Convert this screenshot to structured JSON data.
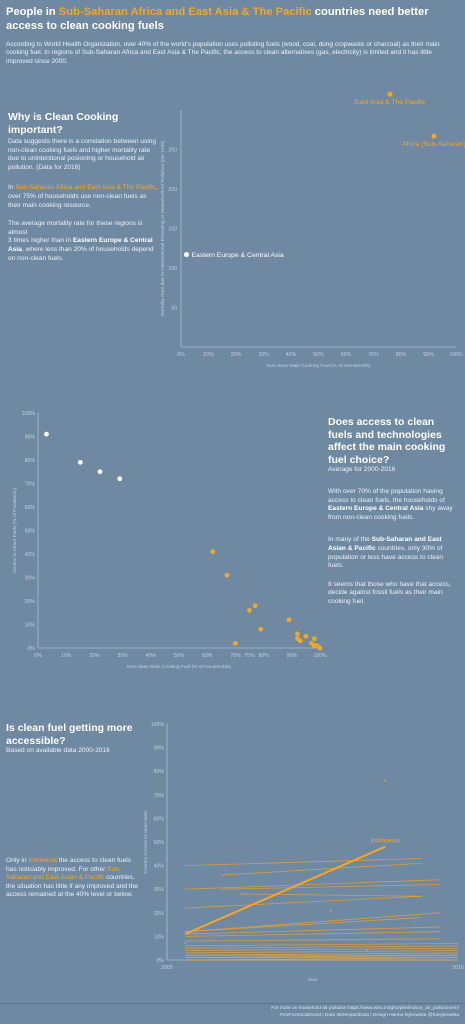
{
  "header": {
    "title_a": "People in ",
    "title_hl": "Sub-Saharan Africa and East Asia & The Pacific",
    "title_b": " countries need better access to clean cooking fuels",
    "intro": "According to World Health Organization, over 40% of the world's population uses polluting fuels (wood, coal, dung cropwaste or charcoal) as their main cooking fuel. In regions of Sub-Saharan Africa and East Asia & The Pacific, the access to clean alternatives (gas, electricity) is limited and it has little improved since 2000."
  },
  "section1": {
    "heading": "Why is Clean Cooking important?",
    "p1": "Data suggests there is a correlation between using non-clean cooking fuels and higher mortality rate due to unintentional posioning or household air pollution. (Data for 2016)",
    "p2_a": "In ",
    "p2_hl": "Sub-Saharan Africa and East Asia & The Pacific",
    "p2_b": ", over 75% of households use non-clean fuels as their main cooking resource.",
    "p3_a": "The average mortality rate for these regions is almost",
    "p3_b": "3 times higher than in ",
    "p3_bold": "Eastern Europe & Central Asia",
    "p3_c": ", where less than 20% of households depend on non-clean fuels."
  },
  "section2": {
    "heading": "Does access to clean fuels and technologies affect the main cooking fuel choice?",
    "subheading": "Average for 2000-2016",
    "p1_a": "With over 70% of the population having access to clean fuels, the households of ",
    "p1_bold": "Eastern Europe & Central Asia",
    "p1_b": " shy away from non-clean cooking fuels.",
    "p2_a": "In many of the ",
    "p2_hl": "Sub-Saharan and East Asian & Pacific",
    "p2_b": " countries, only 30% of population or less have access to clean fuels.",
    "p3": "It seems that those who have that access, decide against fossil fuels as their main cooking fuel."
  },
  "section3": {
    "heading": "Is clean fuel getting more accessible?",
    "subheading": "Based on available data 2000-2016",
    "p_a": "Only in ",
    "p_hl1": "Indonesia",
    "p_b": " the access to clean fuels has noticiably improved. For other ",
    "p_hl2": "Sub-Saharan and East Asian & Pacific",
    "p_c": " countries, the situation has little if any improved and the access remained at the 40% level or below."
  },
  "footer": {
    "line1": "For more on household air pollution https://www.who.int/gho/phe/indoor_air_pollution/en/",
    "line2": "#VizForSocialGood | Data 360ImpactData | Design Hanna Nykowska @hanykowska"
  },
  "colors": {
    "background": "#6f89a3",
    "accent": "#f5a623",
    "neutral": "#ffffff",
    "axis": "#c6d1dc"
  },
  "chart_data": [
    {
      "type": "scatter",
      "xlabel": "Non-clean Main Cooking Fuel (% of Households)",
      "ylabel": "Mortality Rate due to Unintentional Poisoning or Household Air Pollution (per 100k)",
      "xlim": [
        0,
        100
      ],
      "ylim": [
        0,
        300
      ],
      "xticks": [
        "0%",
        "10%",
        "20%",
        "30%",
        "40%",
        "50%",
        "60%",
        "70%",
        "80%",
        "90%",
        "100%"
      ],
      "yticks": [
        "50",
        "100",
        "150",
        "200",
        "250"
      ],
      "points": [
        {
          "label": "East Asia & The Pacific",
          "x": 76,
          "y": 320,
          "color": "#f5a623"
        },
        {
          "label": "Africa (Sub-Saharan)",
          "x": 92,
          "y": 267,
          "color": "#f5a623"
        },
        {
          "label": "Eastern Europe & Central Asia",
          "x": 2,
          "y": 117,
          "color": "#ffffff"
        }
      ]
    },
    {
      "type": "scatter",
      "xlabel": "Non-clean Main Cooking Fuel (% of Households)",
      "ylabel": "Access to Clean Fuels (% of Population)",
      "xlim": [
        0,
        100
      ],
      "ylim": [
        0,
        100
      ],
      "xticks": [
        "0%",
        "10%",
        "20%",
        "30%",
        "40%",
        "50%",
        "60%",
        "70%",
        "75%",
        "80%",
        "90%",
        "100%"
      ],
      "yticks": [
        "0%",
        "10%",
        "20%",
        "30%",
        "40%",
        "50%",
        "60%",
        "70%",
        "80%",
        "90%",
        "100%"
      ],
      "points": [
        {
          "x": 3,
          "y": 91,
          "color": "#ffffff"
        },
        {
          "x": 15,
          "y": 79,
          "color": "#ffffff"
        },
        {
          "x": 22,
          "y": 75,
          "color": "#ffffff"
        },
        {
          "x": 29,
          "y": 72,
          "color": "#ffffff"
        },
        {
          "x": 62,
          "y": 41,
          "color": "#f5a623"
        },
        {
          "x": 67,
          "y": 31,
          "color": "#f5a623"
        },
        {
          "x": 70,
          "y": 2,
          "color": "#f5a623"
        },
        {
          "x": 75,
          "y": 16,
          "color": "#f5a623"
        },
        {
          "x": 77,
          "y": 18,
          "color": "#f5a623"
        },
        {
          "x": 79,
          "y": 8,
          "color": "#f5a623"
        },
        {
          "x": 89,
          "y": 12,
          "color": "#f5a623"
        },
        {
          "x": 92,
          "y": 6,
          "color": "#f5a623"
        },
        {
          "x": 92,
          "y": 4,
          "color": "#f5a623"
        },
        {
          "x": 93,
          "y": 3,
          "color": "#f5a623"
        },
        {
          "x": 95,
          "y": 5,
          "color": "#f5a623"
        },
        {
          "x": 97,
          "y": 2,
          "color": "#f5a623"
        },
        {
          "x": 98,
          "y": 4,
          "color": "#f5a623"
        },
        {
          "x": 98,
          "y": 1,
          "color": "#f5a623"
        },
        {
          "x": 99,
          "y": 1,
          "color": "#f5a623"
        },
        {
          "x": 100,
          "y": 0,
          "color": "#f5a623"
        }
      ]
    },
    {
      "type": "line",
      "xlabel": "Year",
      "ylabel": "Country Access to clean fuels",
      "xlim": [
        2000,
        2016
      ],
      "ylim": [
        0,
        100
      ],
      "xticks": [
        "2000",
        "2016"
      ],
      "yticks": [
        "0%",
        "10%",
        "20%",
        "30%",
        "40%",
        "50%",
        "60%",
        "70%",
        "80%",
        "90%",
        "100%"
      ],
      "highlight": {
        "name": "Indonesia",
        "x": [
          2001,
          2012
        ],
        "y": [
          11,
          48
        ]
      },
      "others": [
        {
          "x": [
            2001,
            2014
          ],
          "y": [
            40,
            43
          ]
        },
        {
          "x": [
            2003,
            2014
          ],
          "y": [
            36,
            41
          ]
        },
        {
          "x": [
            2001,
            2015
          ],
          "y": [
            30,
            34
          ]
        },
        {
          "x": [
            2003,
            2015
          ],
          "y": [
            30,
            32
          ]
        },
        {
          "x": [
            2004,
            2014
          ],
          "y": [
            28,
            27
          ]
        },
        {
          "x": [
            2001,
            2014
          ],
          "y": [
            22,
            27
          ]
        },
        {
          "x": [
            2001,
            2015
          ],
          "y": [
            12,
            20
          ]
        },
        {
          "x": [
            2001,
            2014
          ],
          "y": [
            12,
            18
          ]
        },
        {
          "x": [
            2001,
            2015
          ],
          "y": [
            11,
            14
          ]
        },
        {
          "x": [
            2001,
            2015
          ],
          "y": [
            10,
            12
          ]
        },
        {
          "x": [
            2001,
            2015
          ],
          "y": [
            8,
            9
          ]
        },
        {
          "x": [
            2001,
            2016
          ],
          "y": [
            6,
            7
          ]
        },
        {
          "x": [
            2001,
            2016
          ],
          "y": [
            5,
            6
          ]
        },
        {
          "x": [
            2001,
            2016
          ],
          "y": [
            4,
            5
          ]
        },
        {
          "x": [
            2001,
            2016
          ],
          "y": [
            3,
            4
          ]
        },
        {
          "x": [
            2001,
            2016
          ],
          "y": [
            2,
            3
          ]
        },
        {
          "x": [
            2001,
            2016
          ],
          "y": [
            2,
            2
          ]
        },
        {
          "x": [
            2001,
            2016
          ],
          "y": [
            1,
            2
          ]
        },
        {
          "x": [
            2001,
            2016
          ],
          "y": [
            1,
            1
          ]
        },
        {
          "x": [
            2001,
            2016
          ],
          "y": [
            0,
            1
          ]
        },
        {
          "x": [
            2001,
            2016
          ],
          "y": [
            0,
            0
          ]
        }
      ],
      "markers": [
        {
          "x": 2012,
          "y": 76
        },
        {
          "x": 2009,
          "y": 21
        },
        {
          "x": 2001,
          "y": 7
        },
        {
          "x": 2011,
          "y": 4
        }
      ]
    }
  ]
}
